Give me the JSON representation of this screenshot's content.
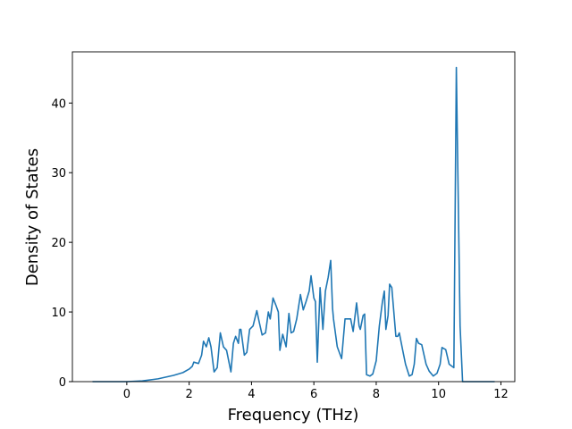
{
  "chart_data": {
    "type": "line",
    "xlabel": "Frequency (THz)",
    "ylabel": "Density of States",
    "x": [
      -1.1,
      0,
      0.5,
      1.0,
      1.5,
      1.8,
      2.0,
      2.1,
      2.15,
      2.3,
      2.4,
      2.46,
      2.55,
      2.63,
      2.7,
      2.8,
      2.9,
      3.0,
      3.1,
      3.2,
      3.34,
      3.42,
      3.49,
      3.58,
      3.62,
      3.66,
      3.77,
      3.85,
      3.94,
      4.05,
      4.17,
      4.25,
      4.34,
      4.45,
      4.54,
      4.6,
      4.69,
      4.78,
      4.86,
      4.91,
      5.0,
      5.11,
      5.2,
      5.27,
      5.35,
      5.45,
      5.57,
      5.66,
      5.75,
      5.85,
      5.91,
      6.0,
      6.05,
      6.11,
      6.2,
      6.29,
      6.37,
      6.46,
      6.54,
      6.6,
      6.63,
      6.75,
      6.89,
      7.0,
      7.1,
      7.18,
      7.26,
      7.37,
      7.45,
      7.49,
      7.58,
      7.63,
      7.69,
      7.8,
      7.89,
      8.0,
      8.1,
      8.2,
      8.26,
      8.31,
      8.38,
      8.43,
      8.5,
      8.63,
      8.69,
      8.74,
      8.85,
      8.94,
      9.06,
      9.15,
      9.22,
      9.29,
      9.36,
      9.46,
      9.6,
      9.7,
      9.83,
      9.95,
      10.05,
      10.11,
      10.23,
      10.34,
      10.49,
      10.57,
      10.69,
      10.77,
      11.0,
      11.8
    ],
    "values": [
      0,
      0,
      0.1,
      0.4,
      0.9,
      1.3,
      1.8,
      2.2,
      2.8,
      2.6,
      3.8,
      5.8,
      5.0,
      6.3,
      5.0,
      1.4,
      2.0,
      7.0,
      5.0,
      4.5,
      1.4,
      5.5,
      6.5,
      5.5,
      7.5,
      7.5,
      3.8,
      4.2,
      7.5,
      8.0,
      10.2,
      8.5,
      6.7,
      7.0,
      10.0,
      9.0,
      12.0,
      11.0,
      10.0,
      4.5,
      6.8,
      5.0,
      9.8,
      7.0,
      7.2,
      9.0,
      12.5,
      10.3,
      11.5,
      13.0,
      15.2,
      12.0,
      11.5,
      2.8,
      13.5,
      7.5,
      13.0,
      15.0,
      17.4,
      10.5,
      9.0,
      5.0,
      3.3,
      9.0,
      9.0,
      9.0,
      7.2,
      11.3,
      8.0,
      7.5,
      9.5,
      9.7,
      1.0,
      0.8,
      1.1,
      3.0,
      8.0,
      11.5,
      13.0,
      7.5,
      9.5,
      14.0,
      13.5,
      6.5,
      6.5,
      7.0,
      4.5,
      2.5,
      0.8,
      1.0,
      2.5,
      6.2,
      5.5,
      5.3,
      2.5,
      1.5,
      0.8,
      1.2,
      2.5,
      4.9,
      4.6,
      2.5,
      2.0,
      45.1,
      8.0,
      0,
      0,
      0
    ],
    "color": "#1f77b4",
    "xlim": [
      -1.745,
      12.445
    ],
    "ylim": [
      0,
      47.35
    ],
    "xticks": [
      0,
      2,
      4,
      6,
      8,
      10,
      12
    ],
    "yticks": [
      0,
      10,
      20,
      30,
      40
    ]
  }
}
